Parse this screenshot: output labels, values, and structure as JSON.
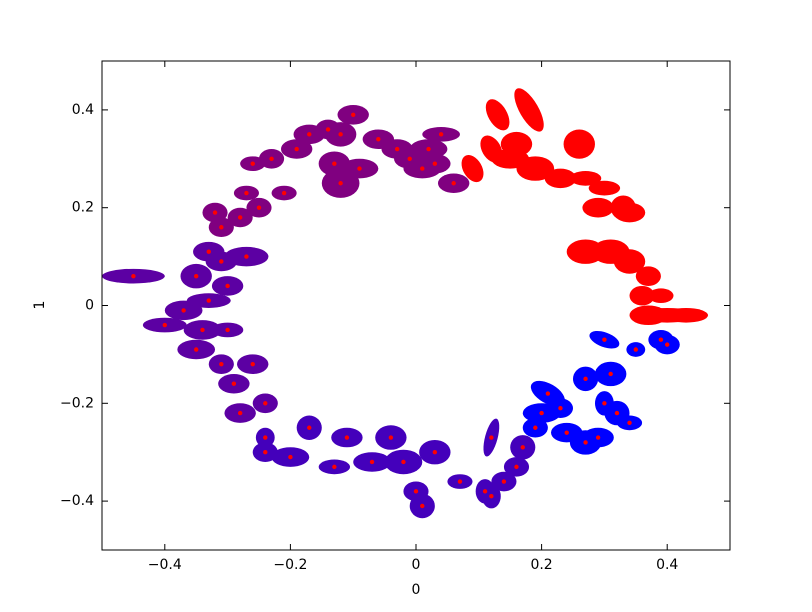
{
  "chart_data": {
    "type": "scatter",
    "x_label": "0",
    "y_label": "1",
    "xlim": [
      -0.5,
      0.5
    ],
    "ylim": [
      -0.5,
      0.5
    ],
    "xticks": [
      {
        "value": -0.4,
        "label": "−0.4"
      },
      {
        "value": -0.2,
        "label": "−0.2"
      },
      0.0,
      0.2,
      0.4
    ],
    "yticks": [
      {
        "value": -0.4,
        "label": "−0.4"
      },
      {
        "value": -0.2,
        "label": "−0.2"
      },
      0.0,
      0.2,
      0.4
    ],
    "dot_color": "#ff0000",
    "x": [
      0.18,
      0.13,
      0.16,
      0.12,
      0.09,
      0.15,
      0.19,
      0.23,
      0.26,
      0.27,
      0.3,
      0.29,
      0.33,
      0.34,
      0.27,
      0.31,
      0.34,
      0.37,
      0.39,
      0.36,
      0.4,
      0.37,
      0.43,
      0.3,
      0.35,
      0.39,
      0.4,
      0.27,
      0.31,
      0.21,
      0.2,
      0.23,
      0.3,
      0.32,
      0.34,
      0.24,
      0.29,
      0.27,
      0.19,
      0.17,
      0.16,
      0.14,
      0.11,
      0.12,
      0.12,
      0.07,
      0.03,
      0.0,
      0.01,
      -0.02,
      -0.04,
      -0.07,
      -0.11,
      -0.13,
      -0.17,
      -0.2,
      -0.24,
      -0.24,
      -0.24,
      -0.28,
      -0.29,
      -0.26,
      -0.31,
      -0.35,
      -0.34,
      -0.3,
      -0.4,
      -0.37,
      -0.33,
      -0.3,
      -0.45,
      -0.35,
      -0.31,
      -0.27,
      -0.33,
      -0.31,
      -0.32,
      -0.28,
      -0.27,
      -0.25,
      -0.21,
      -0.26,
      -0.23,
      -0.19,
      -0.17,
      -0.14,
      -0.12,
      -0.1,
      -0.13,
      -0.09,
      -0.12,
      -0.06,
      -0.03,
      0.02,
      0.04,
      0.03,
      -0.01,
      0.01,
      0.06
    ],
    "y": [
      0.4,
      0.39,
      0.33,
      0.32,
      0.28,
      0.3,
      0.28,
      0.26,
      0.33,
      0.26,
      0.24,
      0.2,
      0.2,
      0.19,
      0.11,
      0.11,
      0.09,
      0.06,
      0.02,
      0.02,
      -0.02,
      -0.02,
      -0.02,
      -0.07,
      -0.09,
      -0.07,
      -0.08,
      -0.15,
      -0.14,
      -0.18,
      -0.22,
      -0.21,
      -0.2,
      -0.22,
      -0.24,
      -0.26,
      -0.27,
      -0.28,
      -0.25,
      -0.29,
      -0.33,
      -0.36,
      -0.38,
      -0.27,
      -0.39,
      -0.36,
      -0.3,
      -0.38,
      -0.41,
      -0.32,
      -0.27,
      -0.32,
      -0.27,
      -0.33,
      -0.25,
      -0.31,
      -0.27,
      -0.3,
      -0.2,
      -0.22,
      -0.16,
      -0.12,
      -0.12,
      -0.09,
      -0.05,
      -0.05,
      -0.04,
      -0.01,
      0.01,
      0.04,
      0.06,
      0.06,
      0.09,
      0.1,
      0.11,
      0.16,
      0.19,
      0.18,
      0.23,
      0.2,
      0.23,
      0.29,
      0.3,
      0.32,
      0.35,
      0.36,
      0.35,
      0.39,
      0.29,
      0.28,
      0.25,
      0.34,
      0.32,
      0.32,
      0.35,
      0.29,
      0.3,
      0.28,
      0.25
    ],
    "widths": [
      0.03,
      0.03,
      0.05,
      0.03,
      0.03,
      0.06,
      0.06,
      0.05,
      0.05,
      0.05,
      0.05,
      0.05,
      0.04,
      0.05,
      0.06,
      0.06,
      0.05,
      0.04,
      0.04,
      0.04,
      0.1,
      0.06,
      0.07,
      0.05,
      0.03,
      0.04,
      0.04,
      0.04,
      0.05,
      0.06,
      0.06,
      0.04,
      0.03,
      0.04,
      0.04,
      0.05,
      0.05,
      0.05,
      0.04,
      0.04,
      0.04,
      0.04,
      0.03,
      0.02,
      0.03,
      0.04,
      0.05,
      0.04,
      0.04,
      0.06,
      0.05,
      0.06,
      0.05,
      0.05,
      0.04,
      0.06,
      0.03,
      0.04,
      0.04,
      0.05,
      0.05,
      0.05,
      0.04,
      0.06,
      0.06,
      0.05,
      0.07,
      0.06,
      0.07,
      0.05,
      0.1,
      0.05,
      0.05,
      0.07,
      0.05,
      0.04,
      0.04,
      0.04,
      0.04,
      0.04,
      0.04,
      0.04,
      0.04,
      0.05,
      0.05,
      0.04,
      0.05,
      0.05,
      0.05,
      0.06,
      0.06,
      0.05,
      0.05,
      0.06,
      0.06,
      0.05,
      0.05,
      0.06,
      0.05
    ],
    "heights": [
      0.1,
      0.07,
      0.05,
      0.06,
      0.06,
      0.04,
      0.05,
      0.04,
      0.06,
      0.03,
      0.03,
      0.04,
      0.05,
      0.04,
      0.05,
      0.05,
      0.05,
      0.04,
      0.03,
      0.04,
      0.03,
      0.04,
      0.03,
      0.03,
      0.03,
      0.04,
      0.04,
      0.05,
      0.05,
      0.04,
      0.04,
      0.04,
      0.05,
      0.05,
      0.03,
      0.04,
      0.04,
      0.05,
      0.04,
      0.05,
      0.04,
      0.04,
      0.05,
      0.08,
      0.05,
      0.03,
      0.05,
      0.04,
      0.05,
      0.05,
      0.05,
      0.04,
      0.04,
      0.03,
      0.05,
      0.04,
      0.04,
      0.04,
      0.04,
      0.04,
      0.04,
      0.04,
      0.04,
      0.04,
      0.04,
      0.03,
      0.03,
      0.04,
      0.03,
      0.04,
      0.03,
      0.05,
      0.04,
      0.04,
      0.04,
      0.04,
      0.04,
      0.04,
      0.03,
      0.04,
      0.03,
      0.03,
      0.04,
      0.04,
      0.04,
      0.04,
      0.05,
      0.04,
      0.05,
      0.04,
      0.06,
      0.04,
      0.04,
      0.04,
      0.03,
      0.04,
      0.04,
      0.04,
      0.04
    ],
    "angles": [
      30,
      30,
      0,
      30,
      30,
      0,
      0,
      0,
      0,
      0,
      0,
      0,
      0,
      0,
      0,
      0,
      0,
      0,
      0,
      0,
      0,
      0,
      0,
      -20,
      0,
      0,
      0,
      0,
      0,
      -30,
      0,
      0,
      0,
      0,
      0,
      0,
      0,
      0,
      0,
      0,
      0,
      0,
      0,
      -15,
      0,
      0,
      0,
      0,
      0,
      0,
      0,
      0,
      0,
      0,
      0,
      0,
      0,
      0,
      0,
      0,
      0,
      0,
      0,
      0,
      0,
      0,
      0,
      0,
      0,
      0,
      0,
      0,
      0,
      0,
      0,
      0,
      0,
      0,
      0,
      0,
      0,
      0,
      0,
      0,
      0,
      0,
      0,
      0,
      0,
      0,
      0,
      0,
      0,
      0,
      0,
      0,
      0,
      0,
      0
    ],
    "colors": [
      "#ff0000",
      "#ff0000",
      "#ff0000",
      "#ff0000",
      "#ff0000",
      "#ff0000",
      "#ff0000",
      "#ff0000",
      "#ff0000",
      "#ff0000",
      "#ff0000",
      "#ff0000",
      "#ff0000",
      "#ff0000",
      "#ff0000",
      "#ff0000",
      "#ff0000",
      "#ff0000",
      "#ff0000",
      "#ff0000",
      "#ff0000",
      "#ff0000",
      "#ff0000",
      "#0000ff",
      "#0000ff",
      "#0000ff",
      "#0000ff",
      "#0000ff",
      "#0000ff",
      "#0000ff",
      "#0000ff",
      "#0000ff",
      "#0000ff",
      "#0000ff",
      "#0000ff",
      "#0000ff",
      "#0000ff",
      "#0000ff",
      "#0000ff",
      "#4400bb",
      "#4400bb",
      "#4400bb",
      "#4400bb",
      "#4400bb",
      "#4400bb",
      "#4400bb",
      "#4400bb",
      "#4400bb",
      "#4400bb",
      "#4400bb",
      "#4400bb",
      "#4400bb",
      "#4400bb",
      "#4400bb",
      "#4400bb",
      "#4400bb",
      "#4400bb",
      "#4400bb",
      "#5c00a3",
      "#5c00a3",
      "#5c00a3",
      "#5c00a3",
      "#5c00a3",
      "#5c00a3",
      "#5c00a3",
      "#5c00a3",
      "#5c00a3",
      "#5c00a3",
      "#5c00a3",
      "#5c00a3",
      "#5c00a3",
      "#5c00a3",
      "#5c00a3",
      "#5c00a3",
      "#5c00a3",
      "#800080",
      "#800080",
      "#800080",
      "#800080",
      "#800080",
      "#800080",
      "#800080",
      "#800080",
      "#800080",
      "#800080",
      "#800080",
      "#800080",
      "#800080",
      "#800080",
      "#800080",
      "#800080",
      "#800080",
      "#800080",
      "#800080",
      "#800080",
      "#800080",
      "#800080",
      "#800080",
      "#800080"
    ]
  }
}
